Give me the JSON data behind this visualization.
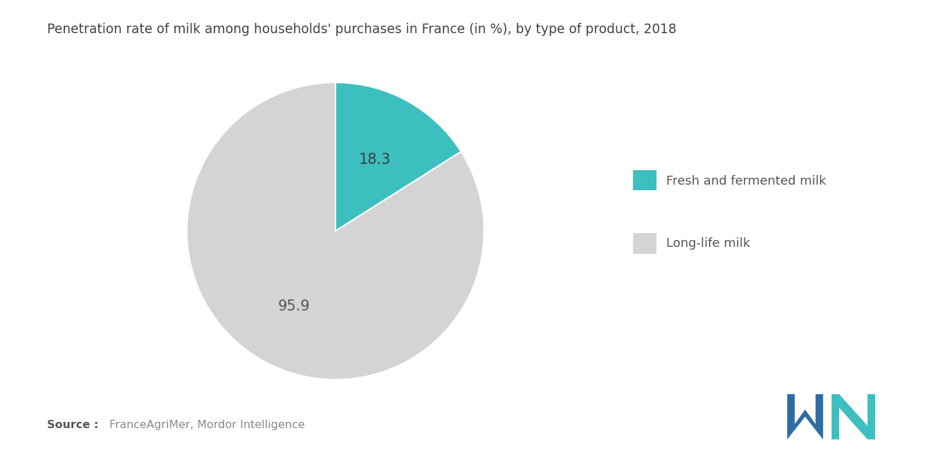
{
  "title": "Penetration rate of milk among households' purchases in France (in %), by type of product, 2018",
  "values": [
    18.3,
    95.9
  ],
  "labels": [
    "Fresh and fermented milk",
    "Long-life milk"
  ],
  "colors": [
    "#3dbfbf",
    "#d4d4d4"
  ],
  "label_values": [
    "18.3",
    "95.9"
  ],
  "source_bold": "Source :",
  "source_rest": " FranceAgriMer, Mordor Intelligence",
  "background_color": "#ffffff",
  "title_fontsize": 13.5,
  "label_fontsize": 15,
  "legend_fontsize": 13,
  "source_fontsize": 11.5
}
